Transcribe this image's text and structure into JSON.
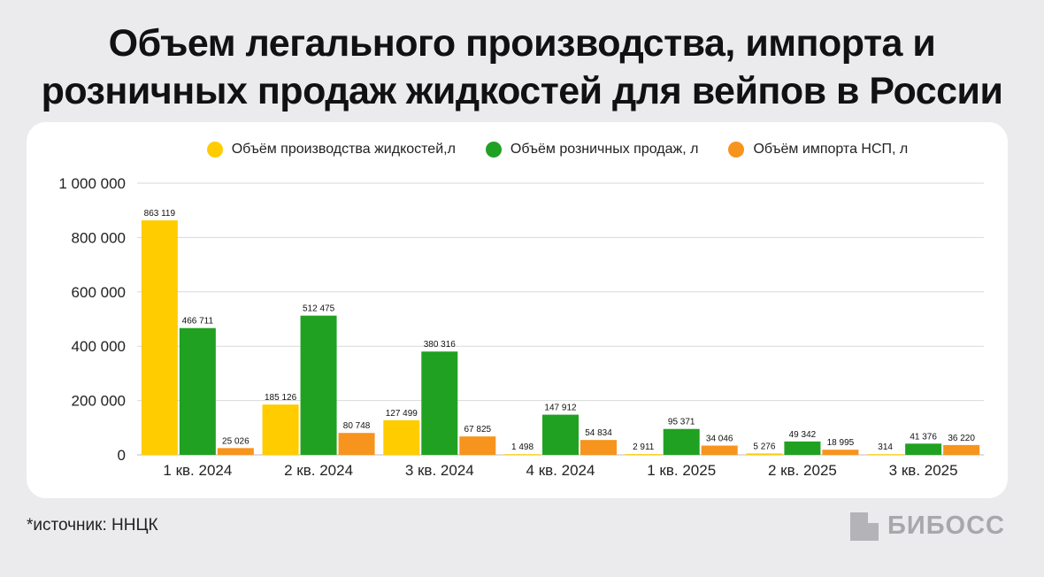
{
  "title_line1": "Объем легального производства, импорта и",
  "title_line2": "розничных продаж жидкостей для вейпов в России",
  "source": "*источник: ННЦК",
  "brand": "БИБОСС",
  "chart_data": {
    "type": "bar",
    "categories": [
      "1 кв. 2024",
      "2 кв. 2024",
      "3 кв. 2024",
      "4 кв. 2024",
      "1 кв. 2025",
      "2 кв. 2025",
      "3 кв. 2025"
    ],
    "series": [
      {
        "name": "Объём производства жидкостей,л",
        "color": "#ffcc00",
        "values": [
          863119,
          185126,
          127499,
          1498,
          2911,
          5276,
          314
        ],
        "labels": [
          "863 119",
          "185 126",
          "127 499",
          "1 498",
          "2 911",
          "5 276",
          "314"
        ]
      },
      {
        "name": "Объём розничных продаж, л",
        "color": "#21a121",
        "values": [
          466711,
          512475,
          380316,
          147912,
          95371,
          49342,
          41376
        ],
        "labels": [
          "466 711",
          "512 475",
          "380 316",
          "147 912",
          "95 371",
          "49 342",
          "41 376"
        ]
      },
      {
        "name": "Объём импорта НСП, л",
        "color": "#f7941d",
        "values": [
          25026,
          80748,
          67825,
          54834,
          34046,
          18995,
          36220
        ],
        "labels": [
          "25 026",
          "80 748",
          "67 825",
          "54 834",
          "34 046",
          "18 995",
          "36 220"
        ]
      }
    ],
    "yticks": [
      0,
      200000,
      400000,
      600000,
      800000,
      1000000
    ],
    "ytick_labels": [
      "0",
      "200 000",
      "400 000",
      "600 000",
      "800 000",
      "1 000 000"
    ],
    "ylim": [
      0,
      1000000
    ],
    "grid": true,
    "legend_position": "top"
  }
}
